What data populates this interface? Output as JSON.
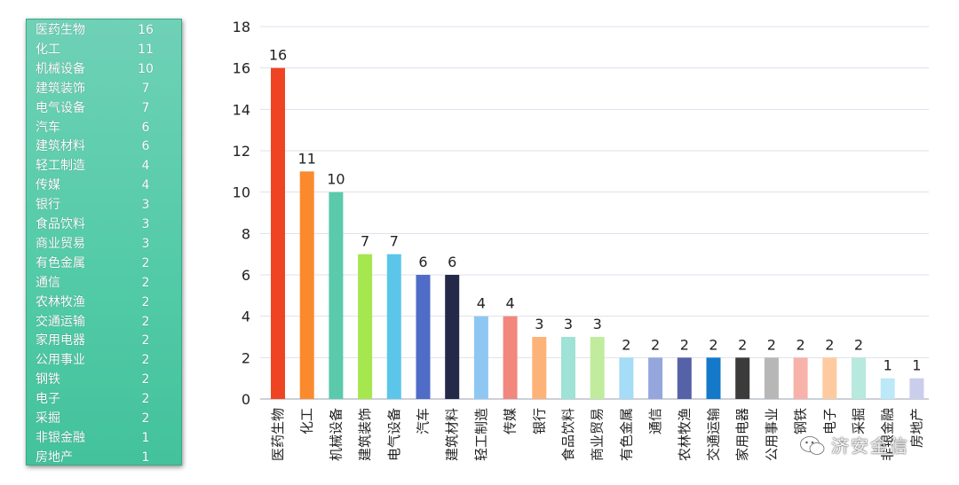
{
  "legend": {
    "rows": [
      {
        "label": "医药生物",
        "value": "16"
      },
      {
        "label": "化工",
        "value": "11"
      },
      {
        "label": "机械设备",
        "value": "10"
      },
      {
        "label": "建筑装饰",
        "value": "7"
      },
      {
        "label": "电气设备",
        "value": "7"
      },
      {
        "label": "汽车",
        "value": "6"
      },
      {
        "label": "建筑材料",
        "value": "6"
      },
      {
        "label": "轻工制造",
        "value": "4"
      },
      {
        "label": "传媒",
        "value": "4"
      },
      {
        "label": "银行",
        "value": "3"
      },
      {
        "label": "食品饮料",
        "value": "3"
      },
      {
        "label": "商业贸易",
        "value": "3"
      },
      {
        "label": "有色金属",
        "value": "2"
      },
      {
        "label": "通信",
        "value": "2"
      },
      {
        "label": "农林牧渔",
        "value": "2"
      },
      {
        "label": "交通运输",
        "value": "2"
      },
      {
        "label": "家用电器",
        "value": "2"
      },
      {
        "label": "公用事业",
        "value": "2"
      },
      {
        "label": "钢铁",
        "value": "2"
      },
      {
        "label": "电子",
        "value": "2"
      },
      {
        "label": "采掘",
        "value": "2"
      },
      {
        "label": "非银金融",
        "value": "1"
      },
      {
        "label": "房地产",
        "value": "1"
      }
    ]
  },
  "chart_data": {
    "type": "bar",
    "title": "",
    "xlabel": "",
    "ylabel": "",
    "ylim": [
      0,
      18
    ],
    "yticks": [
      0,
      2,
      4,
      6,
      8,
      10,
      12,
      14,
      16,
      18
    ],
    "grid": true,
    "categories": [
      "医药生物",
      "化工",
      "机械设备",
      "建筑装饰",
      "电气设备",
      "汽车",
      "建筑材料",
      "轻工制造",
      "传媒",
      "银行",
      "食品饮料",
      "商业贸易",
      "有色金属",
      "通信",
      "农林牧渔",
      "交通运输",
      "家用电器",
      "公用事业",
      "钢铁",
      "电子",
      "采掘",
      "非银金融",
      "房地产"
    ],
    "values": [
      16,
      11,
      10,
      7,
      7,
      6,
      6,
      4,
      4,
      3,
      3,
      3,
      2,
      2,
      2,
      2,
      2,
      2,
      2,
      2,
      2,
      1,
      1
    ],
    "colors": [
      "#ef4423",
      "#fb8a2e",
      "#5bc9ab",
      "#a6e64f",
      "#5bc6ea",
      "#4f6cc7",
      "#24294a",
      "#8ec8f2",
      "#f2877e",
      "#fdb377",
      "#9fe2d6",
      "#c1ec9e",
      "#a5dcf6",
      "#95a6dd",
      "#5562a8",
      "#1479c9",
      "#3b3b3b",
      "#b7b7b7",
      "#f7b2aa",
      "#fdcb9f",
      "#b7e9de",
      "#bde8f8",
      "#cbcdec"
    ]
  },
  "watermark": {
    "text": "济安金信"
  }
}
